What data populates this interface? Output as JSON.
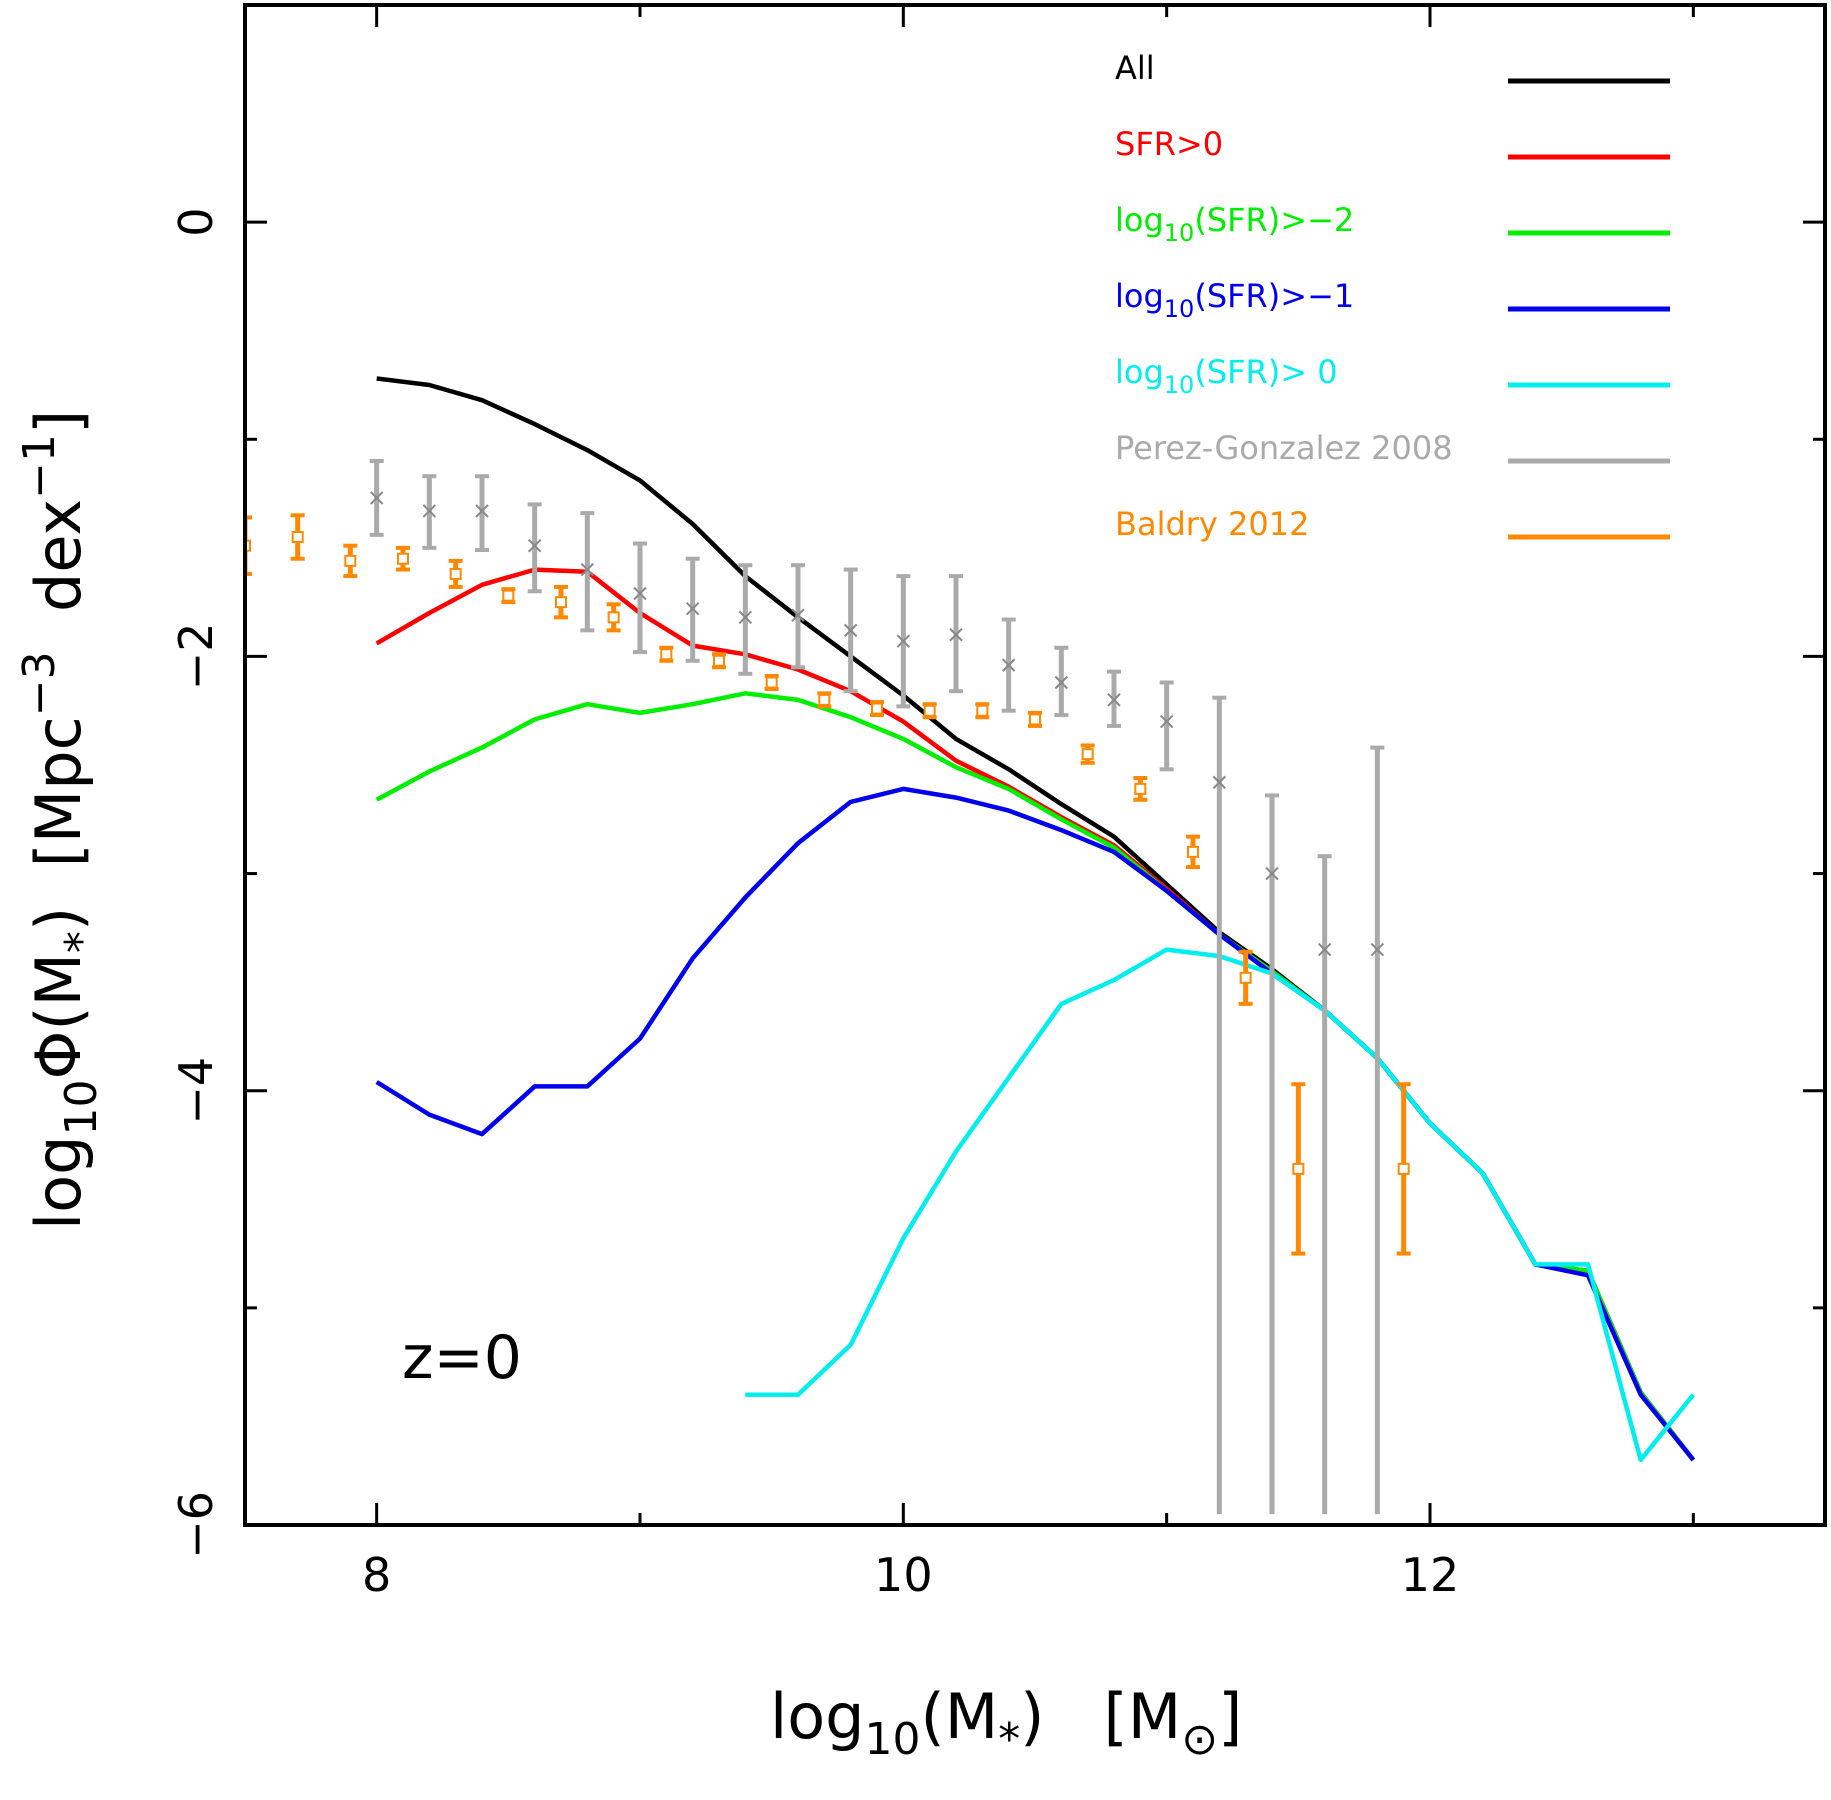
{
  "chart_data": {
    "type": "line",
    "title": "",
    "annotation": "z=0",
    "xlabel": {
      "base": "log",
      "sub": "10",
      "rest": "(M",
      "sub2": "*",
      "tail": ")   [M",
      "symbol": "⊙",
      "close": "]"
    },
    "ylabel": {
      "base": "log",
      "sub": "10",
      "rest": "Φ(M",
      "sub2": "*",
      "mid": ")  [Mpc",
      "sup": "−3",
      "mid2": "  dex",
      "sup2": "−1",
      "close": "]"
    },
    "xlim": [
      7.5,
      13.5
    ],
    "ylim": [
      -6,
      1
    ],
    "xticks": [
      8,
      10,
      12
    ],
    "xtick_labels": [
      "8",
      "10",
      "12"
    ],
    "yticks": [
      -6,
      -4,
      -2,
      0
    ],
    "ytick_labels": [
      "−6",
      "−4",
      "−2",
      "0"
    ],
    "series": [
      {
        "name": "All",
        "color": "#000000",
        "x": [
          8.0,
          8.2,
          8.4,
          8.6,
          8.8,
          9.0,
          9.2,
          9.4,
          9.6,
          9.8,
          10.0,
          10.2,
          10.4,
          10.6,
          10.8,
          11.0,
          11.2,
          11.4,
          11.6,
          11.8,
          12.0,
          12.2,
          12.4,
          12.6,
          12.8,
          13.0
        ],
        "y": [
          -0.72,
          -0.75,
          -0.82,
          -0.93,
          -1.05,
          -1.19,
          -1.39,
          -1.63,
          -1.82,
          -2.0,
          -2.18,
          -2.38,
          -2.52,
          -2.68,
          -2.83,
          -3.05,
          -3.27,
          -3.44,
          -3.63,
          -3.85,
          -4.15,
          -4.38,
          -4.8,
          -4.83,
          -5.39,
          -5.7
        ]
      },
      {
        "name": "SFR>0",
        "color": "#ff0000",
        "x": [
          8.0,
          8.2,
          8.4,
          8.6,
          8.8,
          9.0,
          9.2,
          9.4,
          9.6,
          9.8,
          10.0,
          10.2,
          10.4,
          10.6,
          10.8,
          11.0,
          11.2,
          11.4,
          11.6,
          11.8,
          12.0,
          12.2,
          12.4,
          12.6,
          12.8,
          13.0
        ],
        "y": [
          -1.94,
          -1.8,
          -1.67,
          -1.6,
          -1.61,
          -1.8,
          -1.95,
          -1.99,
          -2.06,
          -2.16,
          -2.3,
          -2.48,
          -2.6,
          -2.74,
          -2.87,
          -3.07,
          -3.28,
          -3.45,
          -3.63,
          -3.85,
          -4.15,
          -4.38,
          -4.8,
          -4.83,
          -5.39,
          -5.7
        ]
      },
      {
        "name": "log10(SFR)>−2",
        "color": "#00ee00",
        "x": [
          8.0,
          8.2,
          8.4,
          8.6,
          8.8,
          9.0,
          9.2,
          9.4,
          9.6,
          9.8,
          10.0,
          10.2,
          10.4,
          10.6,
          10.8,
          11.0,
          11.2,
          11.4,
          11.6,
          11.8,
          12.0,
          12.2,
          12.4,
          12.6,
          12.8,
          13.0
        ],
        "y": [
          -2.66,
          -2.53,
          -2.42,
          -2.29,
          -2.22,
          -2.26,
          -2.22,
          -2.17,
          -2.2,
          -2.28,
          -2.38,
          -2.51,
          -2.61,
          -2.75,
          -2.88,
          -3.08,
          -3.28,
          -3.45,
          -3.63,
          -3.85,
          -4.15,
          -4.38,
          -4.8,
          -4.83,
          -5.39,
          -5.7
        ]
      },
      {
        "name": "log10(SFR)>−1",
        "color": "#0000ee",
        "x": [
          8.0,
          8.2,
          8.4,
          8.6,
          8.8,
          9.0,
          9.2,
          9.4,
          9.6,
          9.8,
          10.0,
          10.2,
          10.4,
          10.6,
          10.8,
          11.0,
          11.2,
          11.4,
          11.6,
          11.8,
          12.0,
          12.2,
          12.4,
          12.6,
          12.8,
          13.0
        ],
        "y": [
          -3.96,
          -4.11,
          -4.2,
          -3.98,
          -3.98,
          -3.76,
          -3.39,
          -3.11,
          -2.86,
          -2.67,
          -2.61,
          -2.65,
          -2.71,
          -2.8,
          -2.9,
          -3.08,
          -3.28,
          -3.46,
          -3.63,
          -3.85,
          -4.15,
          -4.38,
          -4.8,
          -4.85,
          -5.4,
          -5.7
        ]
      },
      {
        "name": "log10(SFR)> 0",
        "color": "#00eeee",
        "x": [
          9.4,
          9.6,
          9.8,
          10.0,
          10.2,
          10.4,
          10.6,
          10.8,
          11.0,
          11.2,
          11.4,
          11.6,
          11.8,
          12.0,
          12.2,
          12.4,
          12.6,
          12.8,
          13.0
        ],
        "y": [
          -5.4,
          -5.4,
          -5.17,
          -4.68,
          -4.28,
          -3.94,
          -3.6,
          -3.49,
          -3.35,
          -3.38,
          -3.46,
          -3.63,
          -3.85,
          -4.15,
          -4.38,
          -4.8,
          -4.8,
          -5.7,
          -5.4
        ]
      }
    ],
    "errorbar_series": [
      {
        "name": "Perez-Gonzalez 2008",
        "color": "#aaaaaa",
        "marker": "x",
        "x": [
          8.0,
          8.2,
          8.4,
          8.6,
          8.8,
          9.0,
          9.2,
          9.4,
          9.6,
          9.8,
          10.0,
          10.2,
          10.4,
          10.6,
          10.8,
          11.0,
          11.2,
          11.4,
          11.6,
          11.8
        ],
        "y": [
          -1.27,
          -1.33,
          -1.33,
          -1.49,
          -1.6,
          -1.71,
          -1.78,
          -1.82,
          -1.81,
          -1.88,
          -1.93,
          -1.9,
          -2.04,
          -2.12,
          -2.2,
          -2.3,
          -2.58,
          -3.0,
          -3.35,
          -3.35
        ],
        "y_low": [
          -1.44,
          -1.5,
          -1.51,
          -1.7,
          -1.88,
          -1.98,
          -2.02,
          -2.08,
          -2.05,
          -2.16,
          -2.23,
          -2.16,
          -2.25,
          -2.27,
          -2.32,
          -2.52,
          -5.95,
          -5.95,
          -5.95,
          -5.95
        ],
        "y_high": [
          -1.1,
          -1.17,
          -1.17,
          -1.3,
          -1.34,
          -1.48,
          -1.55,
          -1.58,
          -1.58,
          -1.6,
          -1.63,
          -1.63,
          -1.83,
          -1.96,
          -2.07,
          -2.12,
          -2.19,
          -2.64,
          -2.92,
          -2.42
        ]
      },
      {
        "name": "Baldry 2012",
        "color": "#ff8800",
        "marker": "square",
        "x": [
          7.5,
          7.7,
          7.9,
          8.1,
          8.3,
          8.5,
          8.7,
          8.9,
          9.1,
          9.3,
          9.5,
          9.7,
          9.9,
          10.1,
          10.3,
          10.5,
          10.7,
          10.9,
          11.1,
          11.3,
          11.5,
          11.9
        ],
        "y": [
          -1.49,
          -1.45,
          -1.56,
          -1.55,
          -1.62,
          -1.72,
          -1.75,
          -1.82,
          -1.99,
          -2.02,
          -2.12,
          -2.2,
          -2.24,
          -2.25,
          -2.25,
          -2.29,
          -2.45,
          -2.61,
          -2.9,
          -3.48,
          -4.36,
          -4.36
        ]
      }
    ],
    "baldry_err": [
      0.13,
      0.1,
      0.07,
      0.05,
      0.06,
      0.03,
      0.07,
      0.06,
      0.03,
      0.03,
      0.03,
      0.03,
      0.03,
      0.03,
      0.03,
      0.03,
      0.04,
      0.05,
      0.07,
      0.12,
      0.39,
      0.39
    ],
    "legend": [
      {
        "label": "All",
        "color": "#000000"
      },
      {
        "label": "SFR>0",
        "color": "#ff0000"
      },
      {
        "label_base": "log",
        "label_sub": "10",
        "label_rest": "(SFR)>−2",
        "color": "#00ee00"
      },
      {
        "label_base": "log",
        "label_sub": "10",
        "label_rest": "(SFR)>−1",
        "color": "#0000ee"
      },
      {
        "label_base": "log",
        "label_sub": "10",
        "label_rest": "(SFR)> 0",
        "color": "#00eeee"
      },
      {
        "label": "Perez-Gonzalez 2008",
        "color": "#aaaaaa"
      },
      {
        "label": "Baldry 2012",
        "color": "#ff8800"
      }
    ],
    "legend_position": "top-right"
  }
}
